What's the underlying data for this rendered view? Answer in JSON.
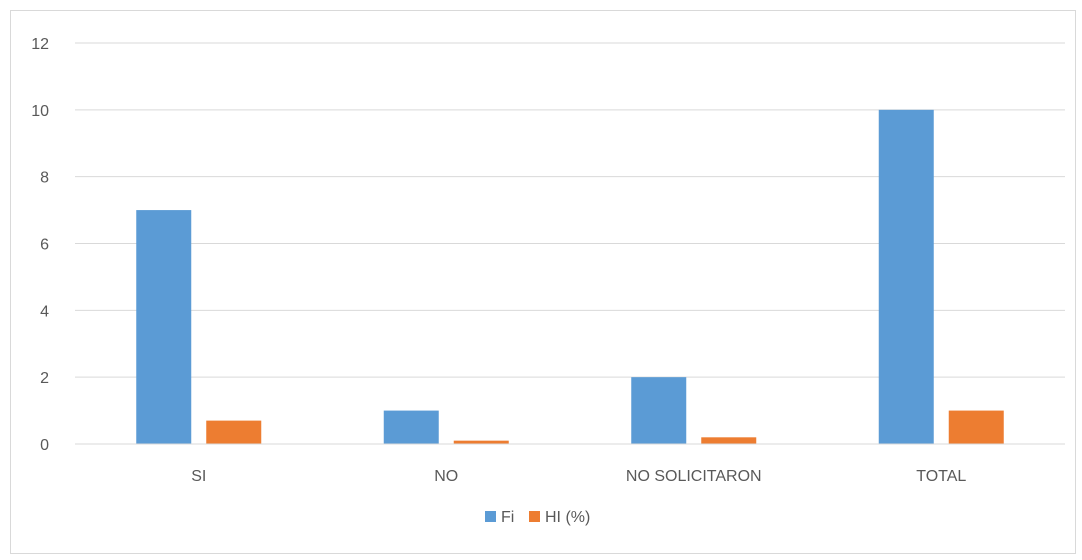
{
  "chart_data": {
    "type": "bar",
    "categories": [
      "SI",
      "NO",
      "NO SOLICITARON",
      "TOTAL"
    ],
    "series": [
      {
        "name": "Fi",
        "values": [
          7,
          1,
          2,
          10
        ],
        "color": "#5B9BD5"
      },
      {
        "name": "HI (%)",
        "values": [
          0.7,
          0.1,
          0.2,
          1.0
        ],
        "color": "#ED7D31"
      }
    ],
    "y_ticks": [
      "0",
      "2",
      "4",
      "6",
      "8",
      "10",
      "12"
    ],
    "ylim": [
      0,
      12
    ],
    "grid": true,
    "legend_position": "bottom"
  }
}
